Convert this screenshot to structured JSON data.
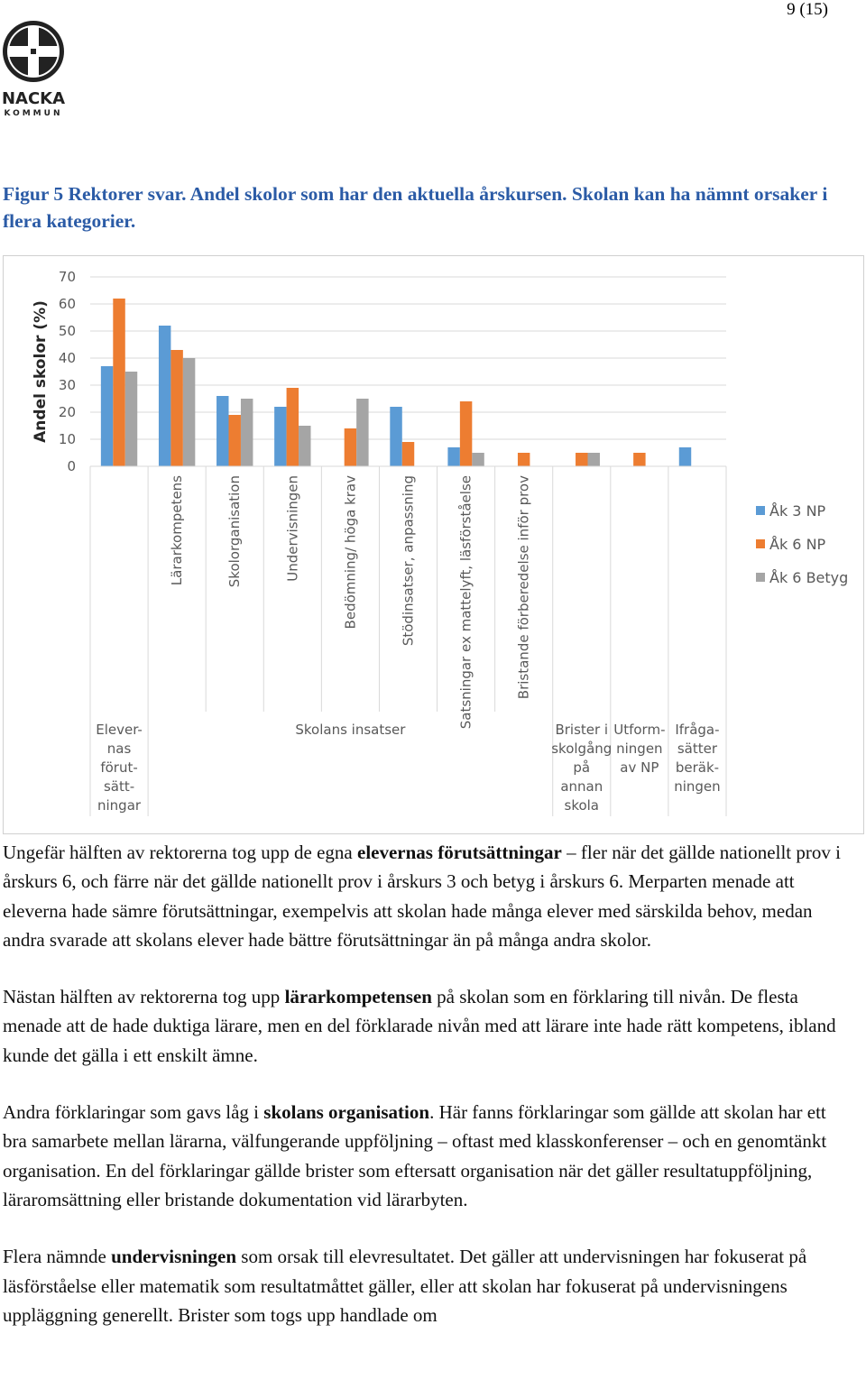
{
  "header": {
    "page_number": "9 (15)",
    "logo_name": "NACKA",
    "logo_sub": "KOMMUN"
  },
  "figure_caption": "Figur 5 Rektorer svar. Andel skolor som har den aktuella årskursen. Skolan kan ha nämnt orsaker i flera kategorier.",
  "chart_data": {
    "type": "bar",
    "y_label": "Andel skolor (%)",
    "groups": [
      {
        "label_lines": [
          "Elever-",
          "nas",
          "förut-",
          "sätt-",
          "ningar"
        ],
        "categories": [
          null
        ]
      },
      {
        "label_lines": [
          "Skolans insatser"
        ],
        "categories": [
          "Lärarkompetens",
          "Skolorganisation",
          "Undervisningen",
          "Bedömning/ höga krav",
          "Stödinsatser, anpassning",
          "Satsningar ex mattelyft, läsförståelse",
          "Bristande förberedelse inför prov"
        ]
      },
      {
        "label_lines": [
          "Brister i",
          "skolgång",
          "på",
          "annan",
          "skola"
        ],
        "categories": [
          null
        ]
      },
      {
        "label_lines": [
          "Utform-",
          "ningen",
          "av NP"
        ],
        "categories": [
          null
        ]
      },
      {
        "label_lines": [
          "Ifråga-",
          "sätter",
          "beräk-",
          "ningen"
        ],
        "categories": [
          null
        ]
      }
    ],
    "series": [
      {
        "name": "Åk 3 NP",
        "color": "#5b9bd5",
        "values": [
          37,
          52,
          26,
          22,
          0,
          22,
          7,
          0,
          0,
          0,
          7
        ]
      },
      {
        "name": "Åk 6 NP",
        "color": "#ed7d31",
        "values": [
          62,
          43,
          19,
          29,
          14,
          9,
          24,
          5,
          5,
          5,
          0
        ]
      },
      {
        "name": "Åk 6 Betyg",
        "color": "#a5a5a5",
        "values": [
          35,
          40,
          25,
          15,
          25,
          0,
          5,
          0,
          5,
          0,
          0
        ]
      }
    ],
    "ylim": [
      0,
      70
    ],
    "yticks": [
      0,
      10,
      20,
      30,
      40,
      50,
      60,
      70
    ],
    "grid": true,
    "legend": "right"
  },
  "paragraphs": [
    {
      "before": "Ungefär hälften av rektorerna tog upp de egna ",
      "bold": "elevernas förutsättningar",
      "after": " – fler när det gällde nationellt prov i årskurs 6, och färre när det gällde nationellt prov i årskurs 3 och betyg i årskurs 6. Merparten menade att eleverna hade sämre förutsättningar, exempelvis att skolan hade många elever med särskilda behov, medan andra svarade att skolans elever hade bättre förutsättningar än på många andra skolor."
    },
    {
      "before": "Nästan hälften av rektorerna tog upp ",
      "bold": "lärarkompetensen",
      "after": " på skolan som en förklaring till nivån. De flesta menade att de hade duktiga lärare, men en del förklarade nivån med att lärare inte hade rätt kompetens, ibland kunde det gälla i ett enskilt ämne."
    },
    {
      "before": "Andra förklaringar som gavs låg i ",
      "bold": "skolans organisation",
      "after": ". Här fanns förklaringar som gällde att skolan har ett bra samarbete mellan lärarna, välfungerande uppföljning – oftast med klasskonferenser – och en genomtänkt organisation. En del förklaringar gällde brister som eftersatt organisation när det gäller resultatuppföljning, läraromsättning eller bristande dokumentation vid lärarbyten."
    },
    {
      "before": "Flera nämnde ",
      "bold": "undervisningen",
      "after": " som orsak till elevresultatet. Det gäller att undervisningen har fokuserat på läsförståelse eller matematik som resultatmåttet gäller, eller att skolan har fokuserat på undervisningens uppläggning generellt. Brister som togs upp handlade om"
    }
  ]
}
